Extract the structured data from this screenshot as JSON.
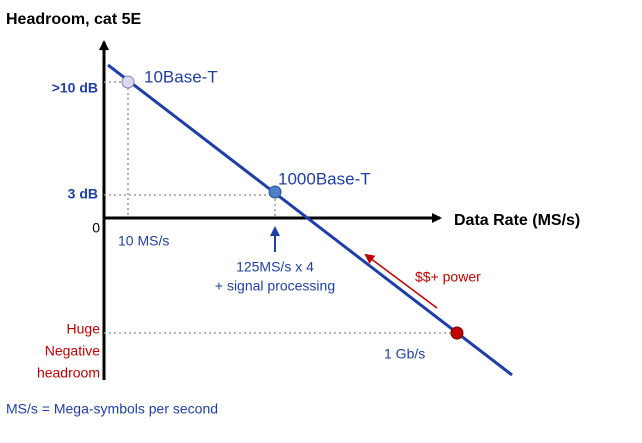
{
  "title": "Headroom, cat 5E",
  "x_axis_label": "Data Rate (MS/s)",
  "origin_label": "0",
  "y_labels": [
    ">10 dB",
    "3 dB"
  ],
  "negative_label": [
    "Huge",
    "Negative",
    "headroom"
  ],
  "points": [
    {
      "label": "10Base-T",
      "rate": "10 MS/s"
    },
    {
      "label": "1000Base-T",
      "rate_lines": [
        "125MS/s x 4",
        "+ signal processing"
      ]
    },
    {
      "rate": "1 Gb/s"
    }
  ],
  "cost_note": "$$+ power",
  "footnote": "MS/s = Mega-symbols per second"
}
